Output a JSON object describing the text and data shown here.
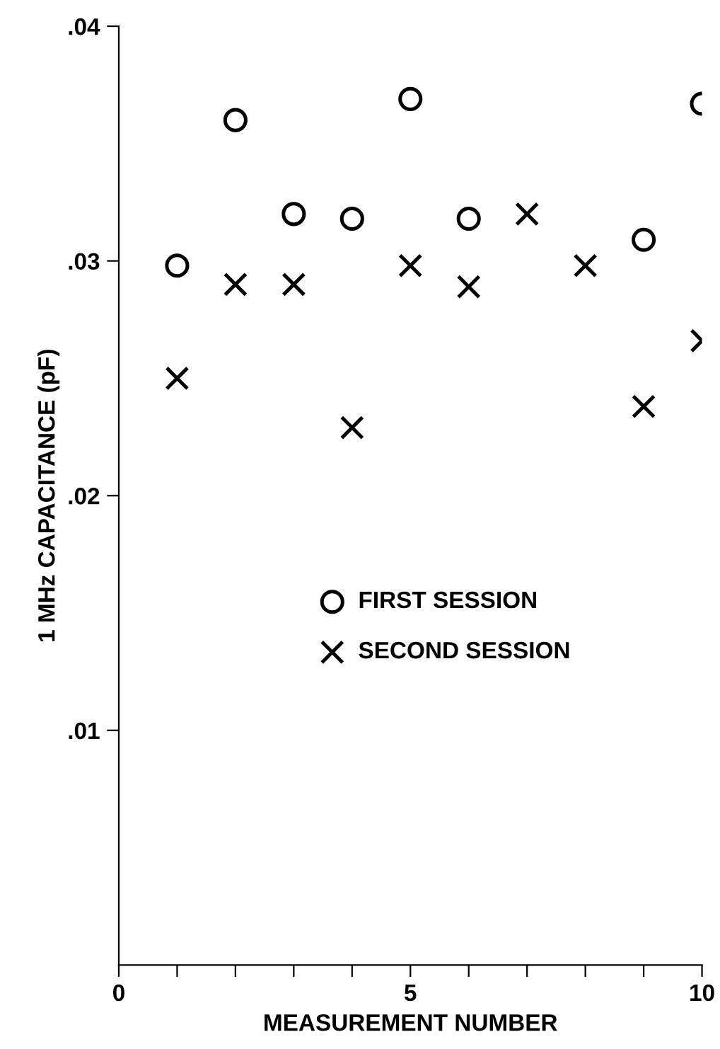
{
  "chart_data": {
    "type": "scatter",
    "xlabel": "MEASUREMENT NUMBER",
    "ylabel": "1 MHz CAPACITANCE (pF)",
    "xlim": [
      0,
      10
    ],
    "ylim": [
      0,
      0.04
    ],
    "xticks": [
      0,
      {
        "value": 1,
        "label": null
      },
      {
        "value": 2,
        "label": null
      },
      {
        "value": 3,
        "label": null
      },
      {
        "value": 4,
        "label": null
      },
      5,
      {
        "value": 6,
        "label": null
      },
      {
        "value": 7,
        "label": null
      },
      {
        "value": 8,
        "label": null
      },
      {
        "value": 9,
        "label": null
      },
      10
    ],
    "yticks": [
      {
        "value": 0.01,
        "label": ".01"
      },
      {
        "value": 0.02,
        "label": ".02"
      },
      {
        "value": 0.03,
        "label": ".03"
      },
      {
        "value": 0.04,
        "label": ".04"
      }
    ],
    "grid": false,
    "legend": "center",
    "series": [
      {
        "name": "FIRST SESSION",
        "color": "#000000",
        "marker": "circle",
        "x": [
          1,
          2,
          3,
          4,
          5,
          6,
          9,
          10
        ],
        "values": [
          0.0298,
          0.036,
          0.032,
          0.0318,
          0.0369,
          0.0318,
          0.0309,
          0.0367
        ]
      },
      {
        "name": "SECOND SESSION",
        "color": "#000000",
        "marker": "cross",
        "x": [
          1,
          2,
          3,
          4,
          5,
          6,
          7,
          8,
          9,
          10
        ],
        "values": [
          0.025,
          0.029,
          0.029,
          0.0229,
          0.0298,
          0.0289,
          0.032,
          0.0298,
          0.0238,
          0.0266
        ]
      }
    ]
  }
}
